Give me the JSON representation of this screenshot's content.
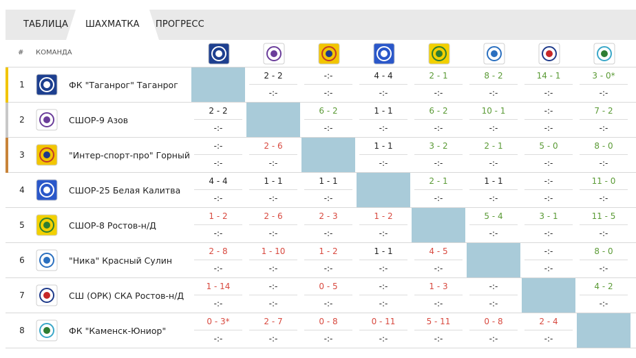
{
  "tabs": [
    "ТАБЛИЦА",
    "ШАХМАТКА",
    "ПРОГРЕСС"
  ],
  "active_tab": 1,
  "header": {
    "num": "#",
    "team": "КОМАНДА"
  },
  "colors": {
    "win": "#5a9a35",
    "loss": "#d8493f",
    "draw": "#222222",
    "diagonal": "#a9cbd9",
    "accent_gold": "#f2c500",
    "accent_silver": "#c8c8c8",
    "accent_bronze": "#c8843a"
  },
  "teams": [
    {
      "num": "1",
      "name": "ФК \"Таганрог\" Таганрог",
      "accent": "gold",
      "logo": "taganrog-logo",
      "scores": [
        [
          "",
          ""
        ],
        [
          "2 - 2",
          "-:-"
        ],
        [
          "-:-",
          "-:-"
        ],
        [
          "4 - 4",
          "-:-"
        ],
        [
          "2 - 1",
          "-:-"
        ],
        [
          "8 - 2",
          "-:-"
        ],
        [
          "14 - 1",
          "-:-"
        ],
        [
          "3 - 0*",
          "-:-"
        ]
      ],
      "results": [
        "",
        "d",
        "",
        "d",
        "w",
        "w",
        "w",
        "w"
      ]
    },
    {
      "num": "2",
      "name": "СШОР-9 Азов",
      "accent": "silver",
      "logo": "azov-logo",
      "scores": [
        [
          "2 - 2",
          "-:-"
        ],
        [
          "",
          ""
        ],
        [
          "6 - 2",
          "-:-"
        ],
        [
          "1 - 1",
          "-:-"
        ],
        [
          "6 - 2",
          "-:-"
        ],
        [
          "10 - 1",
          "-:-"
        ],
        [
          "-:-",
          "-:-"
        ],
        [
          "7 - 2",
          "-:-"
        ]
      ],
      "results": [
        "d",
        "",
        "w",
        "d",
        "w",
        "w",
        "",
        "w"
      ]
    },
    {
      "num": "3",
      "name": "\"Интер-спорт-про\" Горный",
      "accent": "bronze",
      "logo": "inter-sport-pro-logo",
      "scores": [
        [
          "-:-",
          "-:-"
        ],
        [
          "2 - 6",
          "-:-"
        ],
        [
          "",
          ""
        ],
        [
          "1 - 1",
          "-:-"
        ],
        [
          "3 - 2",
          "-:-"
        ],
        [
          "2 - 1",
          "-:-"
        ],
        [
          "5 - 0",
          "-:-"
        ],
        [
          "8 - 0",
          "-:-"
        ]
      ],
      "results": [
        "",
        "l",
        "",
        "d",
        "w",
        "w",
        "w",
        "w"
      ]
    },
    {
      "num": "4",
      "name": "СШОР-25 Белая Калитва",
      "accent": "",
      "logo": "belaya-kalitva-logo",
      "scores": [
        [
          "4 - 4",
          "-:-"
        ],
        [
          "1 - 1",
          "-:-"
        ],
        [
          "1 - 1",
          "-:-"
        ],
        [
          "",
          ""
        ],
        [
          "2 - 1",
          "-:-"
        ],
        [
          "1 - 1",
          "-:-"
        ],
        [
          "-:-",
          "-:-"
        ],
        [
          "11 - 0",
          "-:-"
        ]
      ],
      "results": [
        "d",
        "d",
        "d",
        "",
        "w",
        "d",
        "",
        "w"
      ]
    },
    {
      "num": "5",
      "name": "СШОР-8 Ростов-н/Д",
      "accent": "",
      "logo": "rostov-sshor8-logo",
      "scores": [
        [
          "1 - 2",
          "-:-"
        ],
        [
          "2 - 6",
          "-:-"
        ],
        [
          "2 - 3",
          "-:-"
        ],
        [
          "1 - 2",
          "-:-"
        ],
        [
          "",
          ""
        ],
        [
          "5 - 4",
          "-:-"
        ],
        [
          "3 - 1",
          "-:-"
        ],
        [
          "11 - 5",
          "-:-"
        ]
      ],
      "results": [
        "l",
        "l",
        "l",
        "l",
        "",
        "w",
        "w",
        "w"
      ]
    },
    {
      "num": "6",
      "name": "\"Ника\" Красный Сулин",
      "accent": "",
      "logo": "nika-logo",
      "scores": [
        [
          "2 - 8",
          "-:-"
        ],
        [
          "1 - 10",
          "-:-"
        ],
        [
          "1 - 2",
          "-:-"
        ],
        [
          "1 - 1",
          "-:-"
        ],
        [
          "4 - 5",
          "-:-"
        ],
        [
          "",
          ""
        ],
        [
          "-:-",
          "-:-"
        ],
        [
          "8 - 0",
          "-:-"
        ]
      ],
      "results": [
        "l",
        "l",
        "l",
        "d",
        "l",
        "",
        "",
        "w"
      ]
    },
    {
      "num": "7",
      "name": "СШ (ОРК) СКА Ростов-н/Д",
      "accent": "",
      "logo": "ska-logo",
      "scores": [
        [
          "1 - 14",
          "-:-"
        ],
        [
          "-:-",
          "-:-"
        ],
        [
          "0 - 5",
          "-:-"
        ],
        [
          "-:-",
          "-:-"
        ],
        [
          "1 - 3",
          "-:-"
        ],
        [
          "-:-",
          "-:-"
        ],
        [
          "",
          ""
        ],
        [
          "4 - 2",
          "-:-"
        ]
      ],
      "results": [
        "l",
        "",
        "l",
        "",
        "l",
        "",
        "",
        "w"
      ]
    },
    {
      "num": "8",
      "name": "ФК \"Каменск-Юниор\"",
      "accent": "",
      "logo": "kamensk-junior-logo",
      "scores": [
        [
          "0 - 3*",
          "-:-"
        ],
        [
          "2 - 7",
          "-:-"
        ],
        [
          "0 - 8",
          "-:-"
        ],
        [
          "0 - 11",
          "-:-"
        ],
        [
          "5 - 11",
          "-:-"
        ],
        [
          "0 - 8",
          "-:-"
        ],
        [
          "2 - 4",
          "-:-"
        ],
        [
          "",
          ""
        ]
      ],
      "results": [
        "l",
        "l",
        "l",
        "l",
        "l",
        "l",
        "l",
        ""
      ]
    }
  ]
}
